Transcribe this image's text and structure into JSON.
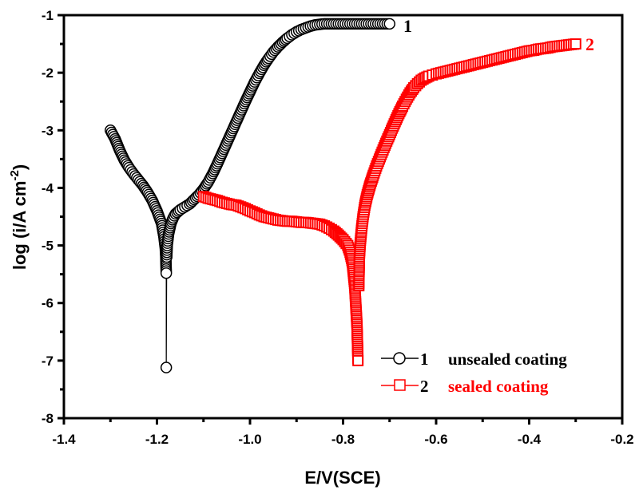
{
  "chart_data": {
    "type": "scatter",
    "title": "",
    "xlabel": "E/V(SCE)",
    "ylabel": "log (i/A cm-2)",
    "ylabel_parts": {
      "main": "log (i/A cm",
      "sup": "-2",
      "close": ")"
    },
    "xlim": [
      -1.4,
      -0.2
    ],
    "ylim": [
      -8,
      -1
    ],
    "xticks": [
      -1.4,
      -1.2,
      -1.0,
      -0.8,
      -0.6,
      -0.4,
      -0.2
    ],
    "xtick_labels": [
      "-1.4",
      "-1.2",
      "-1.0",
      "-0.8",
      "-0.6",
      "-0.4",
      "-0.2"
    ],
    "yticks": [
      -1,
      -2,
      -3,
      -4,
      -5,
      -6,
      -7,
      -8
    ],
    "ytick_labels": [
      "-1",
      "-2",
      "-3",
      "-4",
      "-5",
      "-6",
      "-7",
      "-8"
    ],
    "grid": false,
    "legend_position": "bottom-right",
    "series": [
      {
        "name": "unsealed coating",
        "label_number": "1",
        "marker": "circle",
        "color": "#000000",
        "label_color": "#000000",
        "x": [
          -1.3,
          -1.29,
          -1.28,
          -1.27,
          -1.26,
          -1.25,
          -1.24,
          -1.23,
          -1.22,
          -1.21,
          -1.2,
          -1.19,
          -1.185,
          -1.182,
          -1.181,
          -1.18,
          -1.18,
          -1.179,
          -1.178,
          -1.175,
          -1.17,
          -1.165,
          -1.16,
          -1.15,
          -1.14,
          -1.13,
          -1.12,
          -1.11,
          -1.1,
          -1.09,
          -1.08,
          -1.07,
          -1.06,
          -1.05,
          -1.04,
          -1.03,
          -1.02,
          -1.01,
          -1.0,
          -0.99,
          -0.98,
          -0.97,
          -0.96,
          -0.95,
          -0.94,
          -0.93,
          -0.92,
          -0.91,
          -0.9,
          -0.89,
          -0.88,
          -0.87,
          -0.86,
          -0.85,
          -0.84,
          -0.83,
          -0.82,
          -0.81,
          -0.8,
          -0.79,
          -0.78,
          -0.76,
          -0.74,
          -0.72,
          -0.7
        ],
        "y": [
          -3.0,
          -3.15,
          -3.35,
          -3.52,
          -3.65,
          -3.76,
          -3.86,
          -3.96,
          -4.08,
          -4.22,
          -4.4,
          -4.62,
          -4.85,
          -5.05,
          -5.2,
          -5.48,
          -7.12,
          -5.2,
          -5.0,
          -4.8,
          -4.62,
          -4.52,
          -4.45,
          -4.38,
          -4.33,
          -4.28,
          -4.2,
          -4.12,
          -4.02,
          -3.9,
          -3.75,
          -3.58,
          -3.4,
          -3.22,
          -3.04,
          -2.86,
          -2.68,
          -2.5,
          -2.33,
          -2.16,
          -2.01,
          -1.87,
          -1.75,
          -1.64,
          -1.55,
          -1.47,
          -1.4,
          -1.34,
          -1.29,
          -1.25,
          -1.22,
          -1.19,
          -1.17,
          -1.16,
          -1.15,
          -1.15,
          -1.15,
          -1.15,
          -1.15,
          -1.15,
          -1.15,
          -1.15,
          -1.15,
          -1.15,
          -1.15
        ]
      },
      {
        "name": "sealed coating",
        "label_number": "2",
        "marker": "square",
        "color": "#ff0000",
        "label_color": "#ff0000",
        "x": [
          -1.1,
          -1.09,
          -1.08,
          -1.07,
          -1.06,
          -1.05,
          -1.04,
          -1.03,
          -1.02,
          -1.01,
          -1.0,
          -0.99,
          -0.98,
          -0.97,
          -0.96,
          -0.95,
          -0.94,
          -0.93,
          -0.92,
          -0.91,
          -0.9,
          -0.89,
          -0.88,
          -0.87,
          -0.86,
          -0.85,
          -0.84,
          -0.83,
          -0.82,
          -0.81,
          -0.8,
          -0.79,
          -0.785,
          -0.78,
          -0.775,
          -0.77,
          -0.768,
          -0.766,
          -0.765,
          -0.763,
          -0.76,
          -0.757,
          -0.753,
          -0.748,
          -0.742,
          -0.735,
          -0.728,
          -0.72,
          -0.712,
          -0.704,
          -0.696,
          -0.688,
          -0.68,
          -0.672,
          -0.664,
          -0.656,
          -0.648,
          -0.64,
          -0.632,
          -0.624,
          -0.616,
          -0.608,
          -0.6,
          -0.59,
          -0.58,
          -0.57,
          -0.56,
          -0.55,
          -0.54,
          -0.53,
          -0.52,
          -0.51,
          -0.5,
          -0.49,
          -0.48,
          -0.47,
          -0.46,
          -0.45,
          -0.44,
          -0.43,
          -0.42,
          -0.41,
          -0.4,
          -0.39,
          -0.38,
          -0.37,
          -0.36,
          -0.35,
          -0.34,
          -0.33,
          -0.32,
          -0.31,
          -0.3
        ],
        "y": [
          -4.15,
          -4.18,
          -4.2,
          -4.22,
          -4.25,
          -4.27,
          -4.29,
          -4.3,
          -4.33,
          -4.36,
          -4.4,
          -4.43,
          -4.47,
          -4.5,
          -4.52,
          -4.54,
          -4.56,
          -4.57,
          -4.58,
          -4.58,
          -4.59,
          -4.6,
          -4.6,
          -4.61,
          -4.62,
          -4.63,
          -4.66,
          -4.7,
          -4.75,
          -4.82,
          -4.9,
          -5.0,
          -5.12,
          -5.3,
          -5.7,
          -6.4,
          -7.0,
          -5.7,
          -5.2,
          -4.95,
          -4.7,
          -4.5,
          -4.3,
          -4.12,
          -3.95,
          -3.78,
          -3.62,
          -3.46,
          -3.3,
          -3.15,
          -3.0,
          -2.85,
          -2.71,
          -2.58,
          -2.46,
          -2.35,
          -2.26,
          -2.19,
          -2.13,
          -2.09,
          -2.06,
          -2.04,
          -2.02,
          -2.0,
          -1.98,
          -1.96,
          -1.94,
          -1.92,
          -1.9,
          -1.88,
          -1.86,
          -1.84,
          -1.82,
          -1.8,
          -1.78,
          -1.76,
          -1.74,
          -1.72,
          -1.7,
          -1.68,
          -1.66,
          -1.64,
          -1.62,
          -1.61,
          -1.59,
          -1.58,
          -1.57,
          -1.55,
          -1.54,
          -1.53,
          -1.52,
          -1.51,
          -1.5
        ]
      }
    ],
    "legend": [
      {
        "number": "1",
        "text": "unsealed coating",
        "marker": "circle",
        "line_color": "#000000",
        "text_color": "#000000"
      },
      {
        "number": "2",
        "text": "sealed coating",
        "marker": "square",
        "line_color": "#ff0000",
        "text_color": "#ff0000"
      }
    ],
    "annotations": [
      {
        "text": "1",
        "at_series": "unsealed coating",
        "color": "#000000"
      },
      {
        "text": "2",
        "at_series": "sealed coating",
        "color": "#ff0000"
      }
    ]
  }
}
